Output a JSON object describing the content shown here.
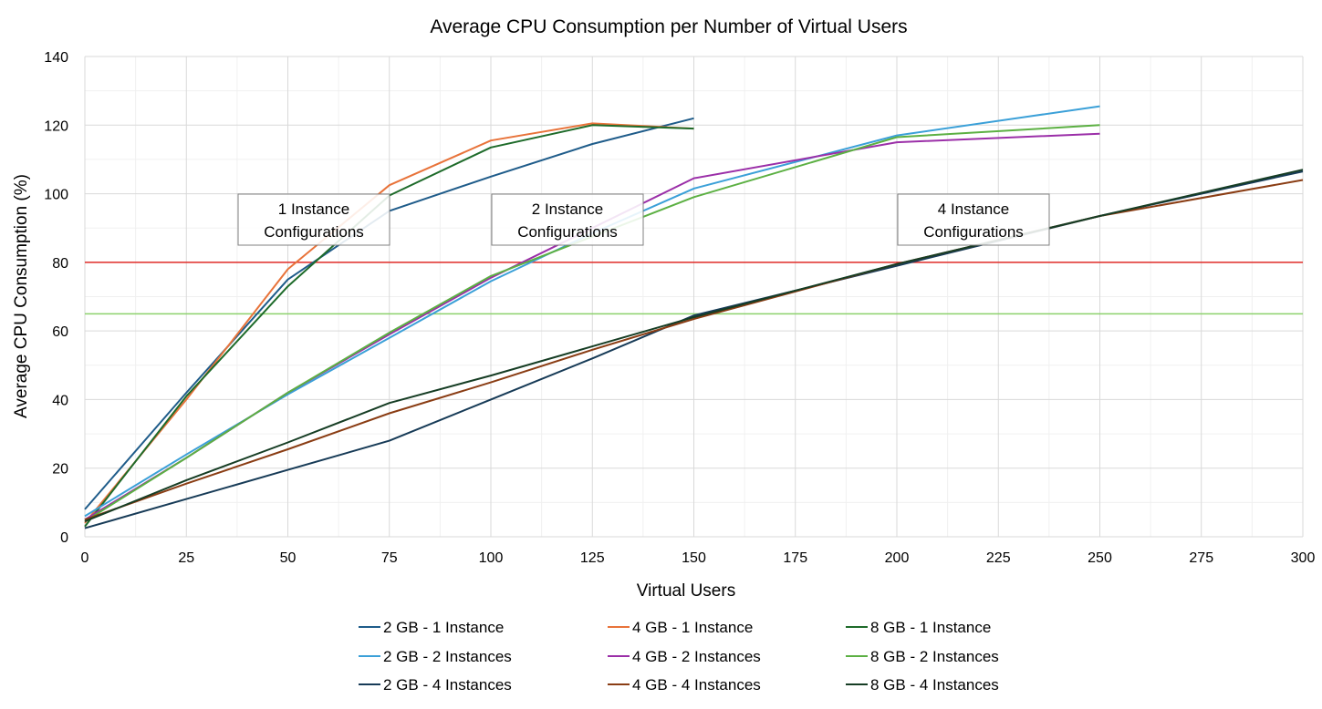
{
  "chart_data": {
    "type": "line",
    "title": "Average CPU Consumption per Number of Virtual Users",
    "xlabel": "Virtual Users",
    "ylabel": "Average CPU Consumption (%)",
    "xlim": [
      0,
      300
    ],
    "ylim": [
      0,
      140
    ],
    "x_ticks": [
      0,
      25,
      50,
      75,
      100,
      125,
      150,
      175,
      200,
      225,
      250,
      275,
      300
    ],
    "y_ticks": [
      0,
      20,
      40,
      60,
      80,
      100,
      120,
      140
    ],
    "grid": true,
    "legend_position": "bottom",
    "reference_lines": [
      {
        "y": 80,
        "color": "#e02b27"
      },
      {
        "y": 65,
        "color": "#8cd16b"
      }
    ],
    "annotations": [
      {
        "lines": [
          "1 Instance",
          "Configurations"
        ]
      },
      {
        "lines": [
          "2 Instance",
          "Configurations"
        ]
      },
      {
        "lines": [
          "4 Instance",
          "Configurations"
        ]
      }
    ],
    "series": [
      {
        "name": "2 GB - 1 Instance",
        "color": "#1f5c8a",
        "points": [
          [
            0,
            8
          ],
          [
            25,
            42
          ],
          [
            50,
            75
          ],
          [
            75,
            95
          ],
          [
            100,
            105
          ],
          [
            125,
            114.5
          ],
          [
            150,
            122
          ]
        ]
      },
      {
        "name": "4 GB - 1 Instance",
        "color": "#e8733a",
        "points": [
          [
            0,
            4
          ],
          [
            25,
            40
          ],
          [
            50,
            78
          ],
          [
            75,
            102.5
          ],
          [
            100,
            115.5
          ],
          [
            125,
            120.5
          ],
          [
            150,
            119
          ]
        ]
      },
      {
        "name": "8 GB - 1 Instance",
        "color": "#1e6b2a",
        "points": [
          [
            0,
            3
          ],
          [
            25,
            41
          ],
          [
            50,
            73
          ],
          [
            75,
            99.5
          ],
          [
            100,
            113.5
          ],
          [
            125,
            120
          ],
          [
            150,
            119
          ]
        ]
      },
      {
        "name": "2 GB - 2 Instances",
        "color": "#3ba0d8",
        "points": [
          [
            0,
            6
          ],
          [
            25,
            24
          ],
          [
            50,
            41.5
          ],
          [
            75,
            58
          ],
          [
            100,
            74.5
          ],
          [
            125,
            88.5
          ],
          [
            150,
            101.5
          ],
          [
            200,
            117
          ],
          [
            250,
            125.5
          ]
        ]
      },
      {
        "name": "4 GB - 2 Instances",
        "color": "#9b2fa8",
        "points": [
          [
            0,
            5
          ],
          [
            25,
            23
          ],
          [
            50,
            42
          ],
          [
            75,
            59
          ],
          [
            100,
            75.5
          ],
          [
            125,
            90
          ],
          [
            150,
            104.5
          ],
          [
            200,
            115
          ],
          [
            250,
            117.5
          ]
        ]
      },
      {
        "name": "8 GB - 2 Instances",
        "color": "#5cb043",
        "points": [
          [
            0,
            4.5
          ],
          [
            25,
            23
          ],
          [
            50,
            42
          ],
          [
            75,
            59.5
          ],
          [
            100,
            76
          ],
          [
            125,
            87.5
          ],
          [
            150,
            99
          ],
          [
            200,
            116.5
          ],
          [
            250,
            120
          ]
        ]
      },
      {
        "name": "2 GB - 4 Instances",
        "color": "#173b57",
        "points": [
          [
            0,
            2.5
          ],
          [
            25,
            11
          ],
          [
            50,
            19.5
          ],
          [
            75,
            28
          ],
          [
            100,
            40
          ],
          [
            125,
            52
          ],
          [
            150,
            64.5
          ],
          [
            200,
            79
          ],
          [
            250,
            93.5
          ],
          [
            300,
            106.5
          ]
        ]
      },
      {
        "name": "4 GB - 4 Instances",
        "color": "#8a3d14",
        "points": [
          [
            0,
            5
          ],
          [
            25,
            15.5
          ],
          [
            50,
            25.5
          ],
          [
            75,
            36
          ],
          [
            100,
            45
          ],
          [
            125,
            54.5
          ],
          [
            150,
            63.5
          ],
          [
            200,
            79.5
          ],
          [
            250,
            93.5
          ],
          [
            300,
            104
          ]
        ]
      },
      {
        "name": "8 GB - 4 Instances",
        "color": "#163d24",
        "points": [
          [
            0,
            4.5
          ],
          [
            25,
            16.5
          ],
          [
            50,
            27.5
          ],
          [
            75,
            39
          ],
          [
            100,
            47
          ],
          [
            125,
            55.5
          ],
          [
            150,
            64
          ],
          [
            200,
            79.5
          ],
          [
            250,
            93.5
          ],
          [
            300,
            107
          ]
        ]
      }
    ]
  }
}
